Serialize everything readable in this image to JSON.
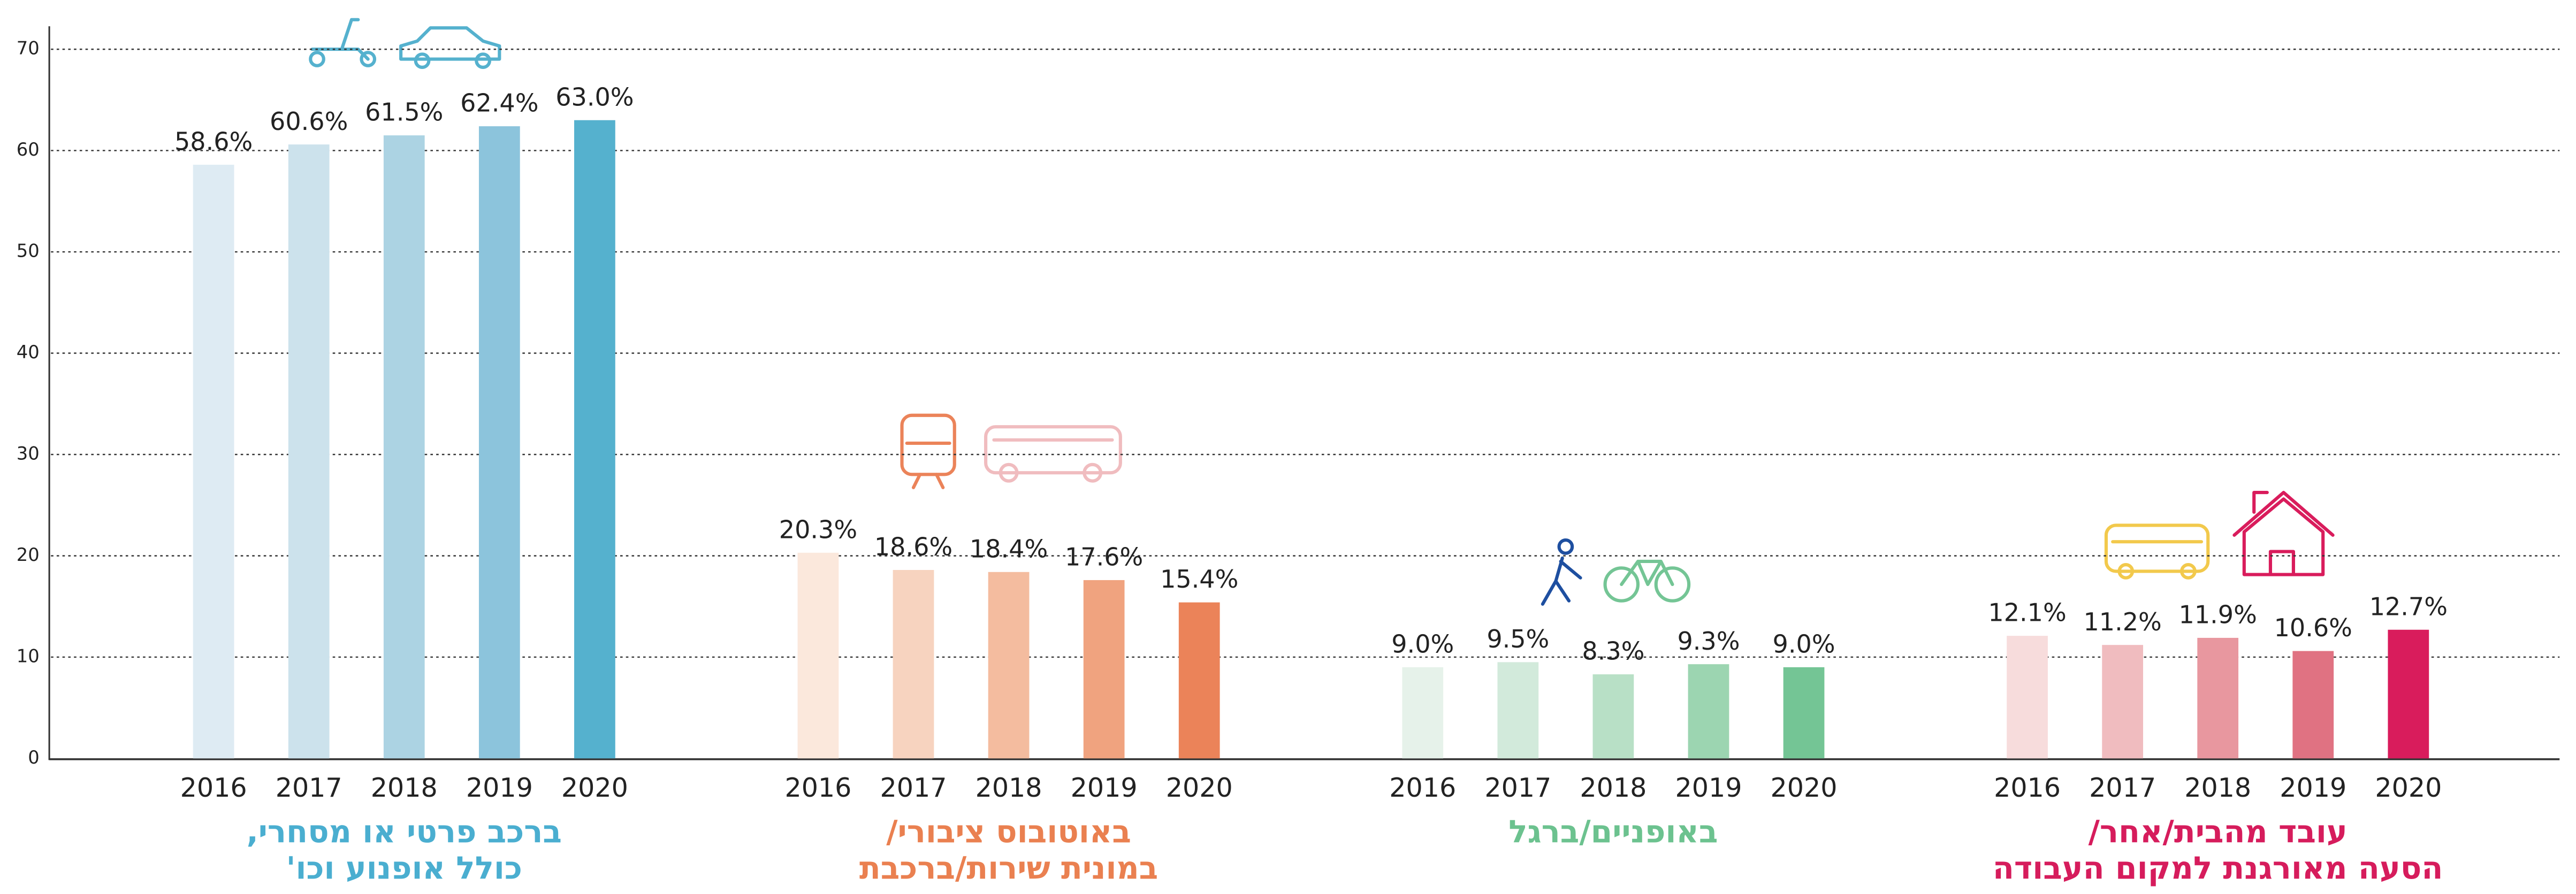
{
  "chart_data": {
    "type": "grouped_bar",
    "ylim": [
      0,
      70
    ],
    "yticks": [
      0,
      10,
      20,
      30,
      40,
      50,
      60,
      70
    ],
    "grid": true,
    "groups": [
      {
        "name": [
          "ברכב פרטי או מסחרי,",
          "כולל אופנוע וכו'"
        ],
        "label_color": "#4aaed0",
        "categories": [
          "2016",
          "2017",
          "2018",
          "2019",
          "2020"
        ],
        "values": [
          58.6,
          60.6,
          61.5,
          62.4,
          63.0
        ],
        "value_labels": [
          "58.6%",
          "60.6%",
          "61.5%",
          "62.4%",
          "63.0%"
        ],
        "colors": [
          "#deebf3",
          "#cce2ec",
          "#acd3e3",
          "#8cc4dc",
          "#55b1ce"
        ]
      },
      {
        "name": [
          "באוטובוס ציבורי/",
          "במונית שירות/ברכבת"
        ],
        "label_color": "#ea8050",
        "categories": [
          "2016",
          "2017",
          "2018",
          "2019",
          "2020"
        ],
        "values": [
          20.3,
          18.6,
          18.4,
          17.6,
          15.4
        ],
        "value_labels": [
          "20.3%",
          "18.6%",
          "18.4%",
          "17.6%",
          "15.4%"
        ],
        "colors": [
          "#fbe8dc",
          "#f7d3bf",
          "#f4bc9f",
          "#f0a37f",
          "#eb8359"
        ]
      },
      {
        "name": [
          "באופניים/ברגל"
        ],
        "label_color": "#6cc28f",
        "categories": [
          "2016",
          "2017",
          "2018",
          "2019",
          "2020"
        ],
        "values": [
          9.0,
          9.5,
          8.3,
          9.3,
          9.0
        ],
        "value_labels": [
          "9.0%",
          "9.5%",
          "8.3%",
          "9.3%",
          "9.0%"
        ],
        "colors": [
          "#e6f2ea",
          "#d2eadb",
          "#b8e0c6",
          "#9cd5b1",
          "#74c595"
        ]
      },
      {
        "name": [
          "עובד מהבית/אחר/",
          "הסעה מאורגנת למקום העבודה"
        ],
        "label_color": "#d61c5c",
        "categories": [
          "2016",
          "2017",
          "2018",
          "2019",
          "2020"
        ],
        "values": [
          12.1,
          11.2,
          11.9,
          10.6,
          12.7
        ],
        "value_labels": [
          "12.1%",
          "11.2%",
          "11.9%",
          "10.6%",
          "12.7%"
        ],
        "colors": [
          "#f7dcdc",
          "#f0bcbf",
          "#e8979f",
          "#e07282",
          "#d91c5c"
        ]
      }
    ]
  }
}
